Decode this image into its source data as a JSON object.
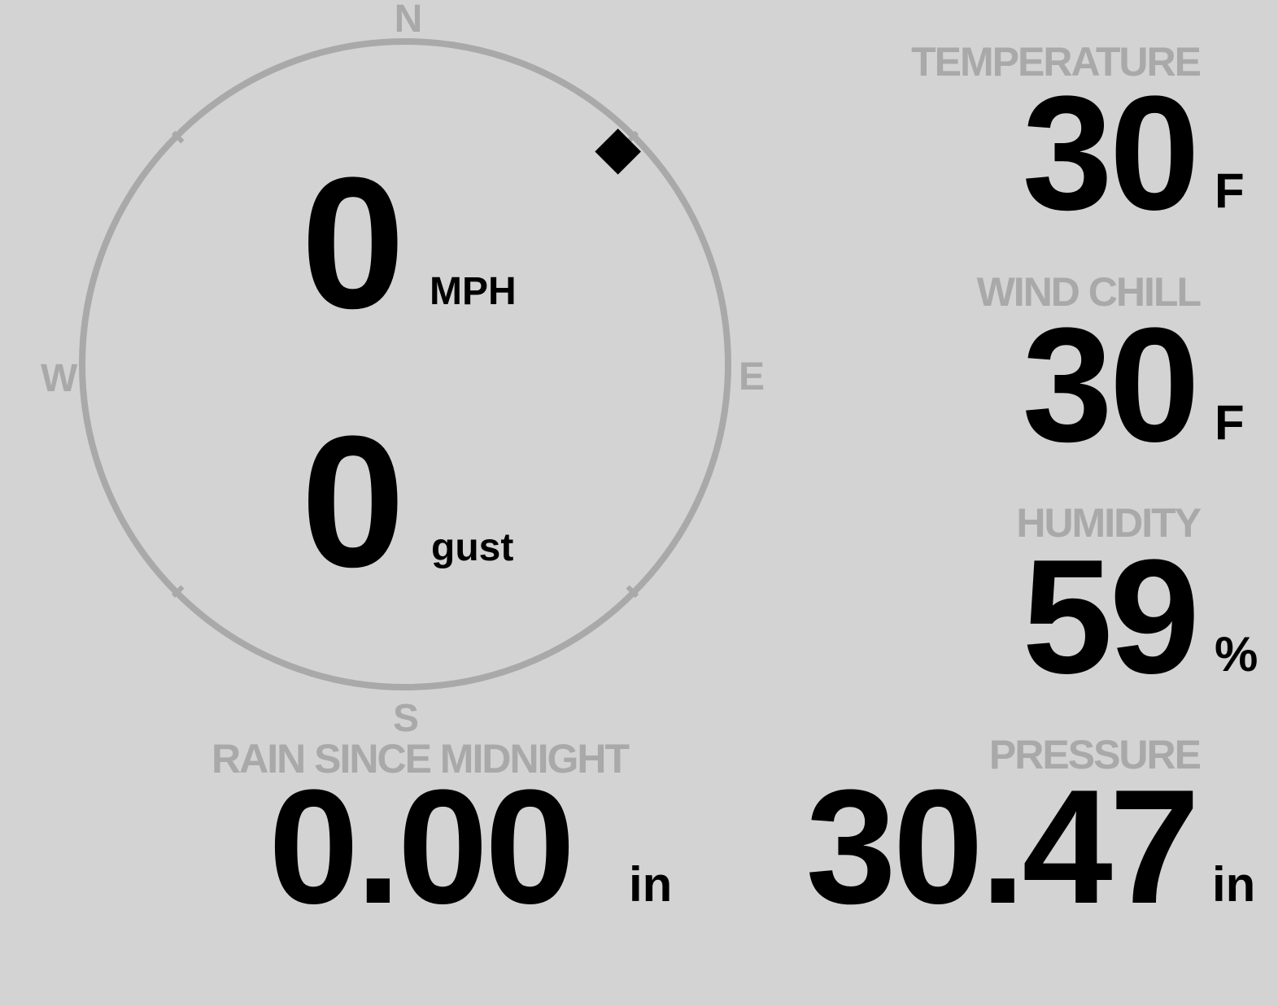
{
  "colors": {
    "background": "#d3d3d3",
    "muted": "#a9a9a9",
    "value": "#000000"
  },
  "compass": {
    "north": "N",
    "south": "S",
    "east": "E",
    "west": "W",
    "wind_direction_degrees": 45,
    "marker_icon": "diamond-icon"
  },
  "wind": {
    "speed": "0",
    "speed_unit": "MPH",
    "gust": "0",
    "gust_unit": "gust"
  },
  "temperature": {
    "label": "TEMPERATURE",
    "value": "30",
    "unit": "F"
  },
  "wind_chill": {
    "label": "WIND CHILL",
    "value": "30",
    "unit": "F"
  },
  "humidity": {
    "label": "HUMIDITY",
    "value": "59",
    "unit": "%"
  },
  "rain": {
    "label": "RAIN SINCE MIDNIGHT",
    "value": "0.00",
    "unit": "in"
  },
  "pressure": {
    "label": "PRESSURE",
    "value": "30.47",
    "unit": "in"
  }
}
